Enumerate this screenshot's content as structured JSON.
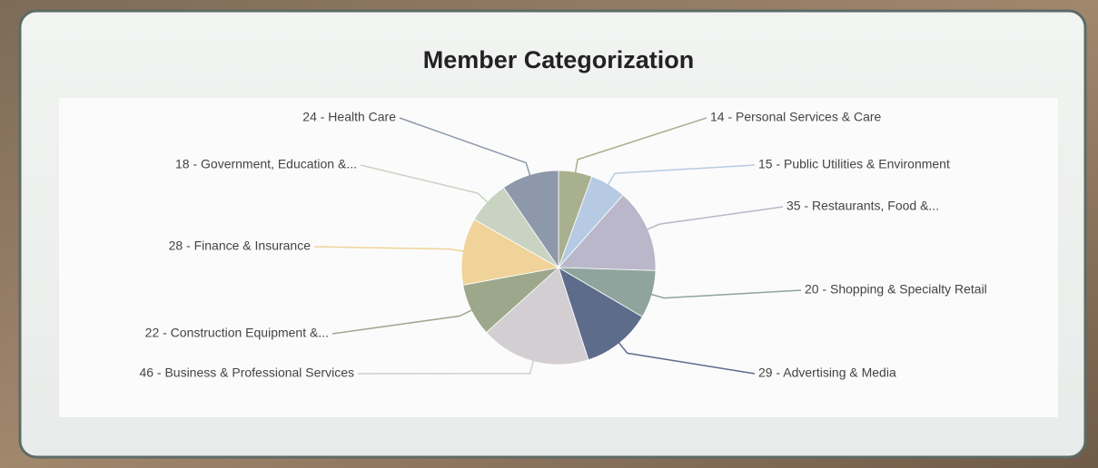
{
  "chart_data": {
    "type": "pie",
    "title": "Member Categorization",
    "categories": [
      "14 - Personal Services & Care",
      "15 - Public Utilities & Environment",
      "35 - Restaurants, Food &...",
      "20 - Shopping & Specialty Retail",
      "29 - Advertising & Media",
      "46 - Business & Professional Services",
      "22 - Construction Equipment &...",
      "28 - Finance & Insurance",
      "18 - Government, Education &...",
      "24 - Health Care"
    ],
    "values": [
      14,
      15,
      35,
      20,
      29,
      46,
      22,
      28,
      18,
      24
    ],
    "colors": [
      "#a9b08f",
      "#b6cbe3",
      "#b9b7c9",
      "#8fa49c",
      "#5e6c8c",
      "#d2ced2",
      "#9ca78c",
      "#f0d399",
      "#c9d3c1",
      "#8d98aa"
    ]
  }
}
